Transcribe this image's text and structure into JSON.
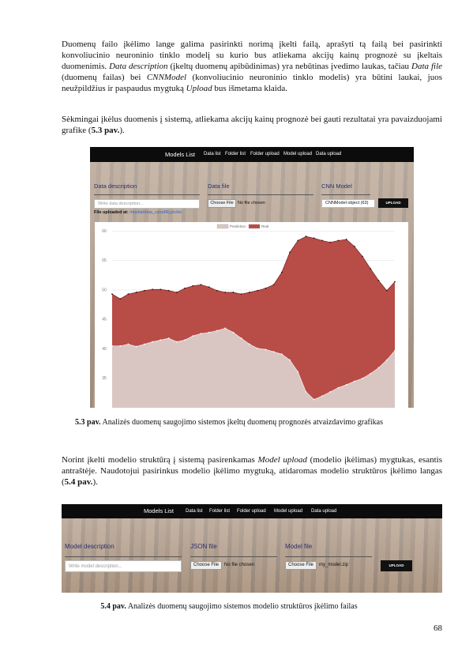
{
  "intro": [
    [
      {
        "text": "Duomenų failo įkėlimo lange galima pasirinkti norimą įkelti failą, aprašyti tą failą bei pasirinkti konvoliucinio neuroninio tinklo modelį su kurio bus atliekama akcijų kainų prognozė su įkeltais duomenimis. "
      },
      {
        "text": "Data description",
        "italic": true
      },
      {
        "text": " (įkeltų duomenų apibūdinimas) yra nebūtinas įvedimo laukas, tačiau "
      },
      {
        "text": "Data file",
        "italic": true
      },
      {
        "text": " (duomenų failas) bei "
      },
      {
        "text": "CNNModel",
        "italic": true
      },
      {
        "text": " (konvoliucinio neuroninio tinklo modelis) yra būtini laukai, juos neužpildžius ir paspaudus mygtuką "
      },
      {
        "text": "Upload",
        "italic": true
      },
      {
        "text": " bus išmetama klaida."
      }
    ],
    [
      {
        "text": "Sėkmingai įkėlus duomenis į sistemą, atliekama akcijų kainų prognozė bei gauti rezultatai yra pavaizduojami grafike ("
      },
      {
        "text": "5.3 pav.",
        "bold": true
      },
      {
        "text": ")."
      }
    ]
  ],
  "figure1": {
    "navbar": {
      "brand": "Models List",
      "links": [
        "Data list",
        "Folder list",
        "Folder upload",
        "Model upload",
        "Data upload"
      ]
    },
    "labels": [
      "Data description",
      "Data file",
      "CNN Model"
    ],
    "placeholder": "Write data description...",
    "choose_file": "Choose File",
    "no_file": "No file chosen",
    "select": "CNNModel object (63)",
    "button": "UPLOAD",
    "uploaded_label": "File uploaded at:",
    "uploaded_path": "/media/data_vzra4Rj.pickle",
    "chart_data": {
      "type": "area",
      "legend": "top",
      "grid": true,
      "ylim": [
        30,
        61
      ],
      "yticks": [
        35,
        40,
        45,
        50,
        55,
        60
      ],
      "series": [
        {
          "name": "Prediction",
          "color": "#d9c6c3",
          "values": [
            40.5,
            40.5,
            40.8,
            40.4,
            40.8,
            41.2,
            41.5,
            41.8,
            41.2,
            41.5,
            42.2,
            42.6,
            42.8,
            43.1,
            43.5,
            42.8,
            41.8,
            40.8,
            40.1,
            39.9,
            39.5,
            39.1,
            38.1,
            36.1,
            32.7,
            31.4,
            32.0,
            32.7,
            33.4,
            33.9,
            34.5,
            35.0,
            35.8,
            36.8,
            38.1,
            39.7
          ]
        },
        {
          "name": "Real",
          "color": "#b84c47",
          "values": [
            49.3,
            48.5,
            49.3,
            49.6,
            49.9,
            50.1,
            50.1,
            49.9,
            49.6,
            50.3,
            50.7,
            50.9,
            50.5,
            49.9,
            49.6,
            49.6,
            49.3,
            49.6,
            49.9,
            50.3,
            50.9,
            53.0,
            56.4,
            58.4,
            59.1,
            58.8,
            58.4,
            58.1,
            58.4,
            58.6,
            57.4,
            55.7,
            53.6,
            51.6,
            49.9,
            51.4
          ]
        }
      ]
    },
    "caption": [
      {
        "text": "5.3 pav.",
        "bold": true
      },
      {
        "text": " Analizės duomenų saugojimo sistemos įkeltų duomenų prognozės atvaizdavimo grafikas"
      }
    ]
  },
  "text2": [
    [
      {
        "text": "Norint įkelti modelio struktūrą į sistemą pasirenkamas "
      },
      {
        "text": "Model upload",
        "italic": true
      },
      {
        "text": " (modelio įkėlimas) mygtukas, esantis antraštėje. Naudotojui pasirinkus modelio įkėlimo mygtuką, atidaromas modelio struktūros įkėlimo langas ("
      },
      {
        "text": "5.4 pav.",
        "bold": true
      },
      {
        "text": ")."
      }
    ]
  ],
  "figure2": {
    "navbar": {
      "brand": "Models List",
      "links": [
        "Data list",
        "Folder list",
        "Folder upload",
        "Model upload",
        "Data upload"
      ]
    },
    "labels": [
      "Model description",
      "JSON file",
      "Model file"
    ],
    "placeholder": "Write model description...",
    "choose_file": [
      "Choose File",
      "Choose File"
    ],
    "files": [
      "No file chosen",
      "my_model.zip"
    ],
    "button": "UPLOAD",
    "caption": [
      {
        "text": "5.4 pav.",
        "bold": true
      },
      {
        "text": " Analizės duomenų saugojimo sistemos modelio struktūros įkėlimo failas"
      }
    ]
  },
  "page_number": "68"
}
